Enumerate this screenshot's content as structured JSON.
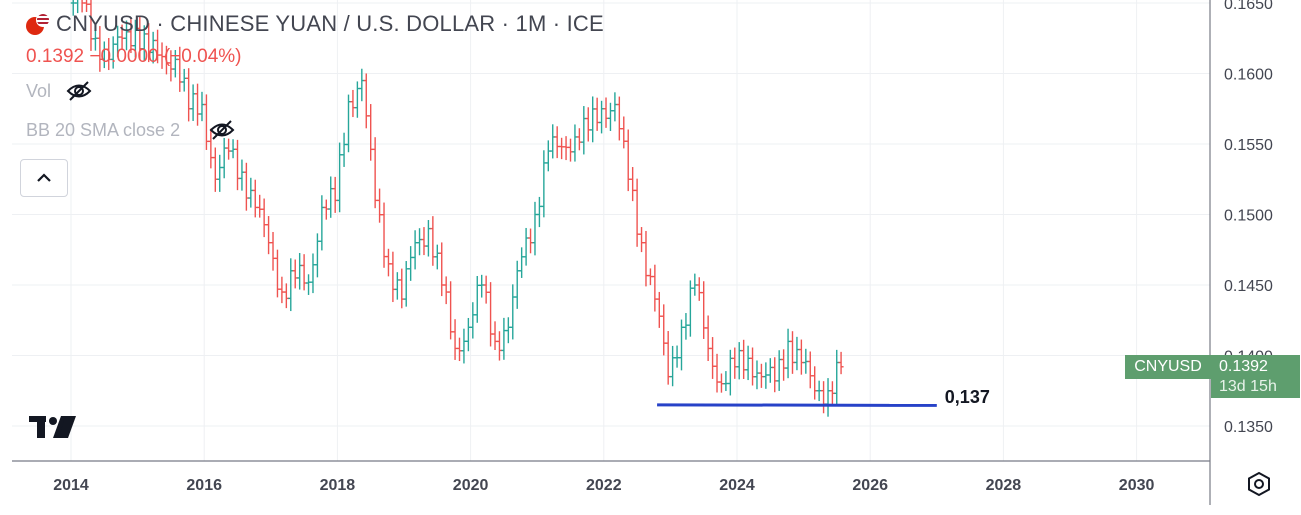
{
  "header": {
    "title": "CNYUSD · CHINESE YUAN / U.S. DOLLAR · 1M · ICE",
    "price_change": "0.1392 −0.0000 (−0.04%)",
    "indicators": [
      {
        "label": "Vol",
        "icon": "eye-off-icon"
      },
      {
        "label": "BB 20 SMA close 2",
        "icon": "eye-off-icon"
      }
    ],
    "collapse_icon": "chevron-up-icon"
  },
  "price_axis": {
    "ticks": [
      "0.1650",
      "0.1600",
      "0.1550",
      "0.1500",
      "0.1450",
      "0.1400",
      "0.1350"
    ]
  },
  "time_axis": {
    "ticks": [
      "2014",
      "2016",
      "2018",
      "2020",
      "2022",
      "2024",
      "2026",
      "2028",
      "2030"
    ]
  },
  "price_tag": {
    "symbol": "CNYUSD",
    "price": "0.1392",
    "countdown": "13d 15h"
  },
  "annotation": {
    "label": "0,137",
    "from_year": 2022.8,
    "to_year": 2027.0,
    "value": 0.1365
  },
  "colors": {
    "up": "#26a69a",
    "down": "#ef5350",
    "tag": "#5e9e6e",
    "trendline": "#2742c8"
  },
  "chart_data": {
    "type": "bar",
    "style": "ohlc-monthly",
    "symbol": "CNYUSD",
    "x_unit": "year",
    "ylim": [
      0.1325,
      0.1655
    ],
    "xlim": [
      2013.9,
      2031.0
    ],
    "grid": true,
    "points": [
      [
        2014.0,
        0.165
      ],
      [
        2014.2,
        0.1625
      ],
      [
        2014.4,
        0.161
      ],
      [
        2014.6,
        0.1625
      ],
      [
        2014.8,
        0.1632
      ],
      [
        2015.0,
        0.1615
      ],
      [
        2015.2,
        0.1612
      ],
      [
        2015.4,
        0.161
      ],
      [
        2015.6,
        0.1575
      ],
      [
        2015.8,
        0.1578
      ],
      [
        2016.0,
        0.1525
      ],
      [
        2016.2,
        0.1545
      ],
      [
        2016.4,
        0.153
      ],
      [
        2016.6,
        0.1505
      ],
      [
        2016.8,
        0.148
      ],
      [
        2017.0,
        0.1445
      ],
      [
        2017.2,
        0.1455
      ],
      [
        2017.4,
        0.1452
      ],
      [
        2017.6,
        0.1505
      ],
      [
        2017.8,
        0.151
      ],
      [
        2018.0,
        0.158
      ],
      [
        2018.2,
        0.1595
      ],
      [
        2018.4,
        0.151
      ],
      [
        2018.6,
        0.1465
      ],
      [
        2018.8,
        0.144
      ],
      [
        2019.0,
        0.148
      ],
      [
        2019.2,
        0.149
      ],
      [
        2019.4,
        0.145
      ],
      [
        2019.6,
        0.1405
      ],
      [
        2019.8,
        0.142
      ],
      [
        2020.0,
        0.145
      ],
      [
        2020.2,
        0.141
      ],
      [
        2020.4,
        0.142
      ],
      [
        2020.6,
        0.147
      ],
      [
        2020.8,
        0.15
      ],
      [
        2021.0,
        0.1545
      ],
      [
        2021.2,
        0.1548
      ],
      [
        2021.4,
        0.1555
      ],
      [
        2021.6,
        0.156
      ],
      [
        2021.8,
        0.1575
      ],
      [
        2022.0,
        0.1578
      ],
      [
        2022.2,
        0.1525
      ],
      [
        2022.4,
        0.148
      ],
      [
        2022.6,
        0.144
      ],
      [
        2022.8,
        0.1385
      ],
      [
        2023.0,
        0.142
      ],
      [
        2023.2,
        0.145
      ],
      [
        2023.4,
        0.1405
      ],
      [
        2023.6,
        0.138
      ],
      [
        2023.8,
        0.1392
      ],
      [
        2024.0,
        0.1398
      ],
      [
        2024.2,
        0.1385
      ],
      [
        2024.4,
        0.1382
      ],
      [
        2024.6,
        0.141
      ],
      [
        2024.8,
        0.1395
      ],
      [
        2025.0,
        0.1375
      ],
      [
        2025.2,
        0.1375
      ],
      [
        2025.4,
        0.1392
      ]
    ]
  }
}
